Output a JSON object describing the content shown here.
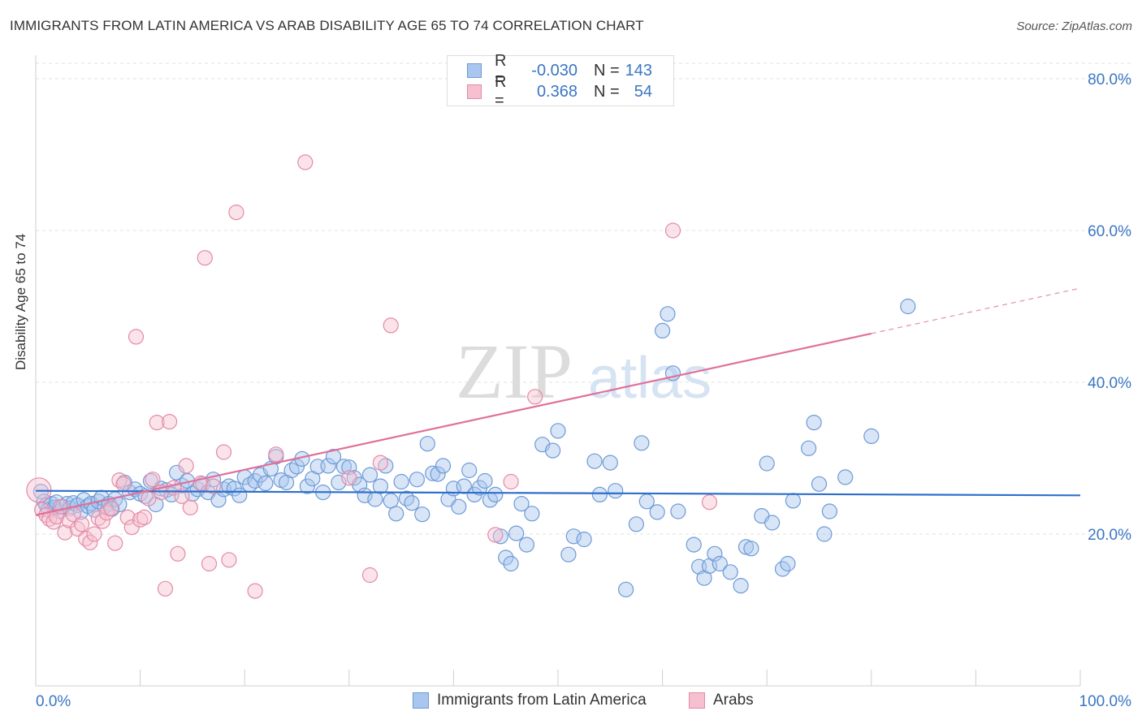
{
  "title": "IMMIGRANTS FROM LATIN AMERICA VS ARAB DISABILITY AGE 65 TO 74 CORRELATION CHART",
  "source": "Source: ZipAtlas.com",
  "watermark": {
    "zip": "ZIP",
    "atlas": "atlas"
  },
  "legend_top": {
    "rows": [
      {
        "r_label": "R =",
        "r_value": "-0.030",
        "n_label": "N =",
        "n_value": "143",
        "color": "#a8c6ee",
        "border": "#6d9ad6"
      },
      {
        "r_label": "R =",
        "r_value": "0.368",
        "n_label": "N =",
        "n_value": "54",
        "color": "#f6c0d0",
        "border": "#e48aa7"
      }
    ]
  },
  "legend_bottom": {
    "items": [
      {
        "label": "Immigrants from Latin America",
        "color": "#a8c6ee",
        "border": "#6d9ad6"
      },
      {
        "label": "Arabs",
        "color": "#f6c0d0",
        "border": "#e48aa7"
      }
    ]
  },
  "chart_data": {
    "type": "scatter",
    "title": "IMMIGRANTS FROM LATIN AMERICA VS ARAB DISABILITY AGE 65 TO 74 CORRELATION CHART",
    "xlabel": "",
    "ylabel": "Disability Age 65 to 74",
    "xlim": [
      0,
      100
    ],
    "ylim": [
      0,
      80
    ],
    "x_tick_labels": [
      "0.0%",
      "100.0%"
    ],
    "y_tick_labels": [
      "20.0%",
      "40.0%",
      "60.0%",
      "80.0%"
    ],
    "y_ticks": [
      20,
      40,
      60,
      80
    ],
    "grid": true,
    "legend_position": "top-center",
    "series": [
      {
        "name": "Immigrants from Latin America",
        "color": "#6d9ad6",
        "fill": "#a8c6ee",
        "trend": {
          "x0": 0,
          "y0": 25.7,
          "x1": 100,
          "y1": 25.1,
          "solid_to": 100,
          "color": "#2f6fca"
        },
        "points": [
          [
            0.5,
            25.6
          ],
          [
            0.8,
            24.3
          ],
          [
            1.0,
            23.8
          ],
          [
            1.2,
            23.2
          ],
          [
            1.5,
            24.0
          ],
          [
            1.8,
            23.5
          ],
          [
            2.0,
            24.2
          ],
          [
            2.3,
            23.0
          ],
          [
            2.6,
            23.6
          ],
          [
            3.0,
            24.0
          ],
          [
            3.3,
            23.4
          ],
          [
            3.6,
            24.1
          ],
          [
            4.0,
            23.8
          ],
          [
            4.3,
            22.9
          ],
          [
            4.6,
            24.5
          ],
          [
            5.0,
            23.7
          ],
          [
            5.3,
            24.0
          ],
          [
            5.6,
            23.2
          ],
          [
            6.0,
            24.3
          ],
          [
            6.3,
            24.8
          ],
          [
            6.6,
            23.6
          ],
          [
            7.0,
            24.0
          ],
          [
            7.3,
            23.3
          ],
          [
            7.6,
            24.6
          ],
          [
            8.0,
            23.9
          ],
          [
            8.5,
            26.8
          ],
          [
            9.0,
            25.5
          ],
          [
            9.5,
            25.9
          ],
          [
            10.0,
            25.3
          ],
          [
            10.5,
            25.0
          ],
          [
            11.0,
            27.0
          ],
          [
            11.5,
            23.9
          ],
          [
            12.0,
            26.0
          ],
          [
            12.5,
            25.8
          ],
          [
            13.0,
            25.2
          ],
          [
            13.5,
            28.1
          ],
          [
            14.0,
            26.4
          ],
          [
            14.5,
            27.0
          ],
          [
            15.0,
            25.3
          ],
          [
            15.5,
            25.9
          ],
          [
            16.0,
            26.6
          ],
          [
            16.5,
            25.5
          ],
          [
            17.0,
            27.2
          ],
          [
            17.5,
            24.5
          ],
          [
            18.0,
            25.9
          ],
          [
            18.5,
            26.3
          ],
          [
            19.0,
            26.0
          ],
          [
            19.5,
            25.1
          ],
          [
            20.0,
            27.5
          ],
          [
            20.5,
            26.5
          ],
          [
            21.0,
            27.0
          ],
          [
            21.5,
            27.8
          ],
          [
            22.0,
            26.7
          ],
          [
            22.5,
            28.6
          ],
          [
            23.0,
            30.2
          ],
          [
            23.5,
            27.1
          ],
          [
            24.0,
            26.8
          ],
          [
            24.5,
            28.4
          ],
          [
            25.0,
            28.9
          ],
          [
            25.5,
            29.9
          ],
          [
            26.0,
            26.3
          ],
          [
            26.5,
            27.3
          ],
          [
            27.0,
            28.9
          ],
          [
            27.5,
            25.5
          ],
          [
            28.0,
            29.0
          ],
          [
            28.5,
            30.2
          ],
          [
            29.0,
            26.8
          ],
          [
            29.5,
            28.9
          ],
          [
            30.0,
            28.8
          ],
          [
            30.5,
            27.4
          ],
          [
            31.0,
            26.5
          ],
          [
            31.5,
            25.1
          ],
          [
            32.0,
            27.8
          ],
          [
            32.5,
            24.6
          ],
          [
            33.0,
            26.3
          ],
          [
            33.5,
            29.0
          ],
          [
            34.0,
            24.4
          ],
          [
            34.5,
            22.7
          ],
          [
            35.0,
            26.9
          ],
          [
            35.5,
            24.7
          ],
          [
            36.0,
            24.1
          ],
          [
            36.5,
            27.2
          ],
          [
            37.0,
            22.6
          ],
          [
            37.5,
            31.9
          ],
          [
            38.0,
            28.0
          ],
          [
            38.5,
            27.9
          ],
          [
            39.0,
            29.0
          ],
          [
            39.5,
            24.6
          ],
          [
            40.0,
            26.0
          ],
          [
            40.5,
            23.6
          ],
          [
            41.0,
            26.3
          ],
          [
            41.5,
            28.4
          ],
          [
            42.0,
            25.2
          ],
          [
            42.5,
            26.1
          ],
          [
            43.0,
            27.0
          ],
          [
            43.5,
            24.5
          ],
          [
            44.0,
            25.2
          ],
          [
            44.5,
            19.7
          ],
          [
            45.0,
            16.9
          ],
          [
            45.5,
            16.1
          ],
          [
            46.0,
            20.1
          ],
          [
            46.5,
            24.0
          ],
          [
            47.0,
            18.6
          ],
          [
            47.5,
            22.7
          ],
          [
            48.5,
            31.8
          ],
          [
            49.5,
            31.0
          ],
          [
            50.0,
            33.6
          ],
          [
            51.0,
            17.3
          ],
          [
            51.5,
            19.7
          ],
          [
            52.5,
            19.3
          ],
          [
            53.5,
            29.6
          ],
          [
            54.0,
            25.2
          ],
          [
            55.0,
            29.4
          ],
          [
            55.5,
            25.7
          ],
          [
            56.5,
            12.7
          ],
          [
            57.5,
            21.3
          ],
          [
            58.0,
            32.0
          ],
          [
            58.5,
            24.3
          ],
          [
            59.5,
            22.9
          ],
          [
            60.0,
            46.8
          ],
          [
            60.5,
            49.0
          ],
          [
            61.0,
            41.2
          ],
          [
            61.5,
            23.0
          ],
          [
            63.0,
            18.6
          ],
          [
            63.5,
            15.7
          ],
          [
            64.0,
            14.2
          ],
          [
            64.5,
            15.8
          ],
          [
            65.0,
            17.4
          ],
          [
            65.5,
            16.1
          ],
          [
            66.5,
            15.0
          ],
          [
            67.5,
            13.2
          ],
          [
            68.0,
            18.3
          ],
          [
            68.5,
            18.1
          ],
          [
            69.5,
            22.4
          ],
          [
            70.0,
            29.3
          ],
          [
            70.5,
            21.5
          ],
          [
            71.5,
            15.4
          ],
          [
            72.0,
            16.1
          ],
          [
            72.5,
            24.4
          ],
          [
            74.0,
            31.3
          ],
          [
            74.5,
            34.7
          ],
          [
            75.0,
            26.6
          ],
          [
            75.5,
            20.0
          ],
          [
            76.0,
            23.0
          ],
          [
            77.5,
            27.5
          ],
          [
            80.0,
            32.9
          ],
          [
            83.5,
            50.0
          ]
        ]
      },
      {
        "name": "Arabs",
        "color": "#e48aa7",
        "fill": "#f6c0d0",
        "trend": {
          "x0": 0,
          "y0": 22.5,
          "x1": 100,
          "y1": 52.4,
          "solid_to": 80,
          "color": "#e0709a"
        },
        "points": [
          [
            0.3,
            25.8
          ],
          [
            0.6,
            23.2
          ],
          [
            1.0,
            22.5
          ],
          [
            1.3,
            22.0
          ],
          [
            1.7,
            21.6
          ],
          [
            2.0,
            22.3
          ],
          [
            2.4,
            23.6
          ],
          [
            2.8,
            20.2
          ],
          [
            3.2,
            21.8
          ],
          [
            3.6,
            22.6
          ],
          [
            4.0,
            20.7
          ],
          [
            4.4,
            21.3
          ],
          [
            4.8,
            19.4
          ],
          [
            5.2,
            18.9
          ],
          [
            5.6,
            20.0
          ],
          [
            6.0,
            22.1
          ],
          [
            6.4,
            21.7
          ],
          [
            6.8,
            22.8
          ],
          [
            7.2,
            23.4
          ],
          [
            7.6,
            18.8
          ],
          [
            8.0,
            27.1
          ],
          [
            8.4,
            26.6
          ],
          [
            8.8,
            22.2
          ],
          [
            9.2,
            20.9
          ],
          [
            9.6,
            46.0
          ],
          [
            10.0,
            21.9
          ],
          [
            10.4,
            22.2
          ],
          [
            10.8,
            24.7
          ],
          [
            11.2,
            27.2
          ],
          [
            11.6,
            34.7
          ],
          [
            12.0,
            25.5
          ],
          [
            12.4,
            12.8
          ],
          [
            12.8,
            34.8
          ],
          [
            13.2,
            26.1
          ],
          [
            13.6,
            17.4
          ],
          [
            14.0,
            25.0
          ],
          [
            14.4,
            29.0
          ],
          [
            14.8,
            23.5
          ],
          [
            15.8,
            26.7
          ],
          [
            16.2,
            56.4
          ],
          [
            16.6,
            16.1
          ],
          [
            17.0,
            26.3
          ],
          [
            18.0,
            30.8
          ],
          [
            18.5,
            16.6
          ],
          [
            19.2,
            62.4
          ],
          [
            21.0,
            12.5
          ],
          [
            23.0,
            30.5
          ],
          [
            25.8,
            69.0
          ],
          [
            30.0,
            27.4
          ],
          [
            32.0,
            14.6
          ],
          [
            33.0,
            29.4
          ],
          [
            34.0,
            47.5
          ],
          [
            44.0,
            19.9
          ],
          [
            45.5,
            26.9
          ],
          [
            47.8,
            38.1
          ],
          [
            61.0,
            60.0
          ],
          [
            64.5,
            24.2
          ]
        ]
      }
    ]
  }
}
